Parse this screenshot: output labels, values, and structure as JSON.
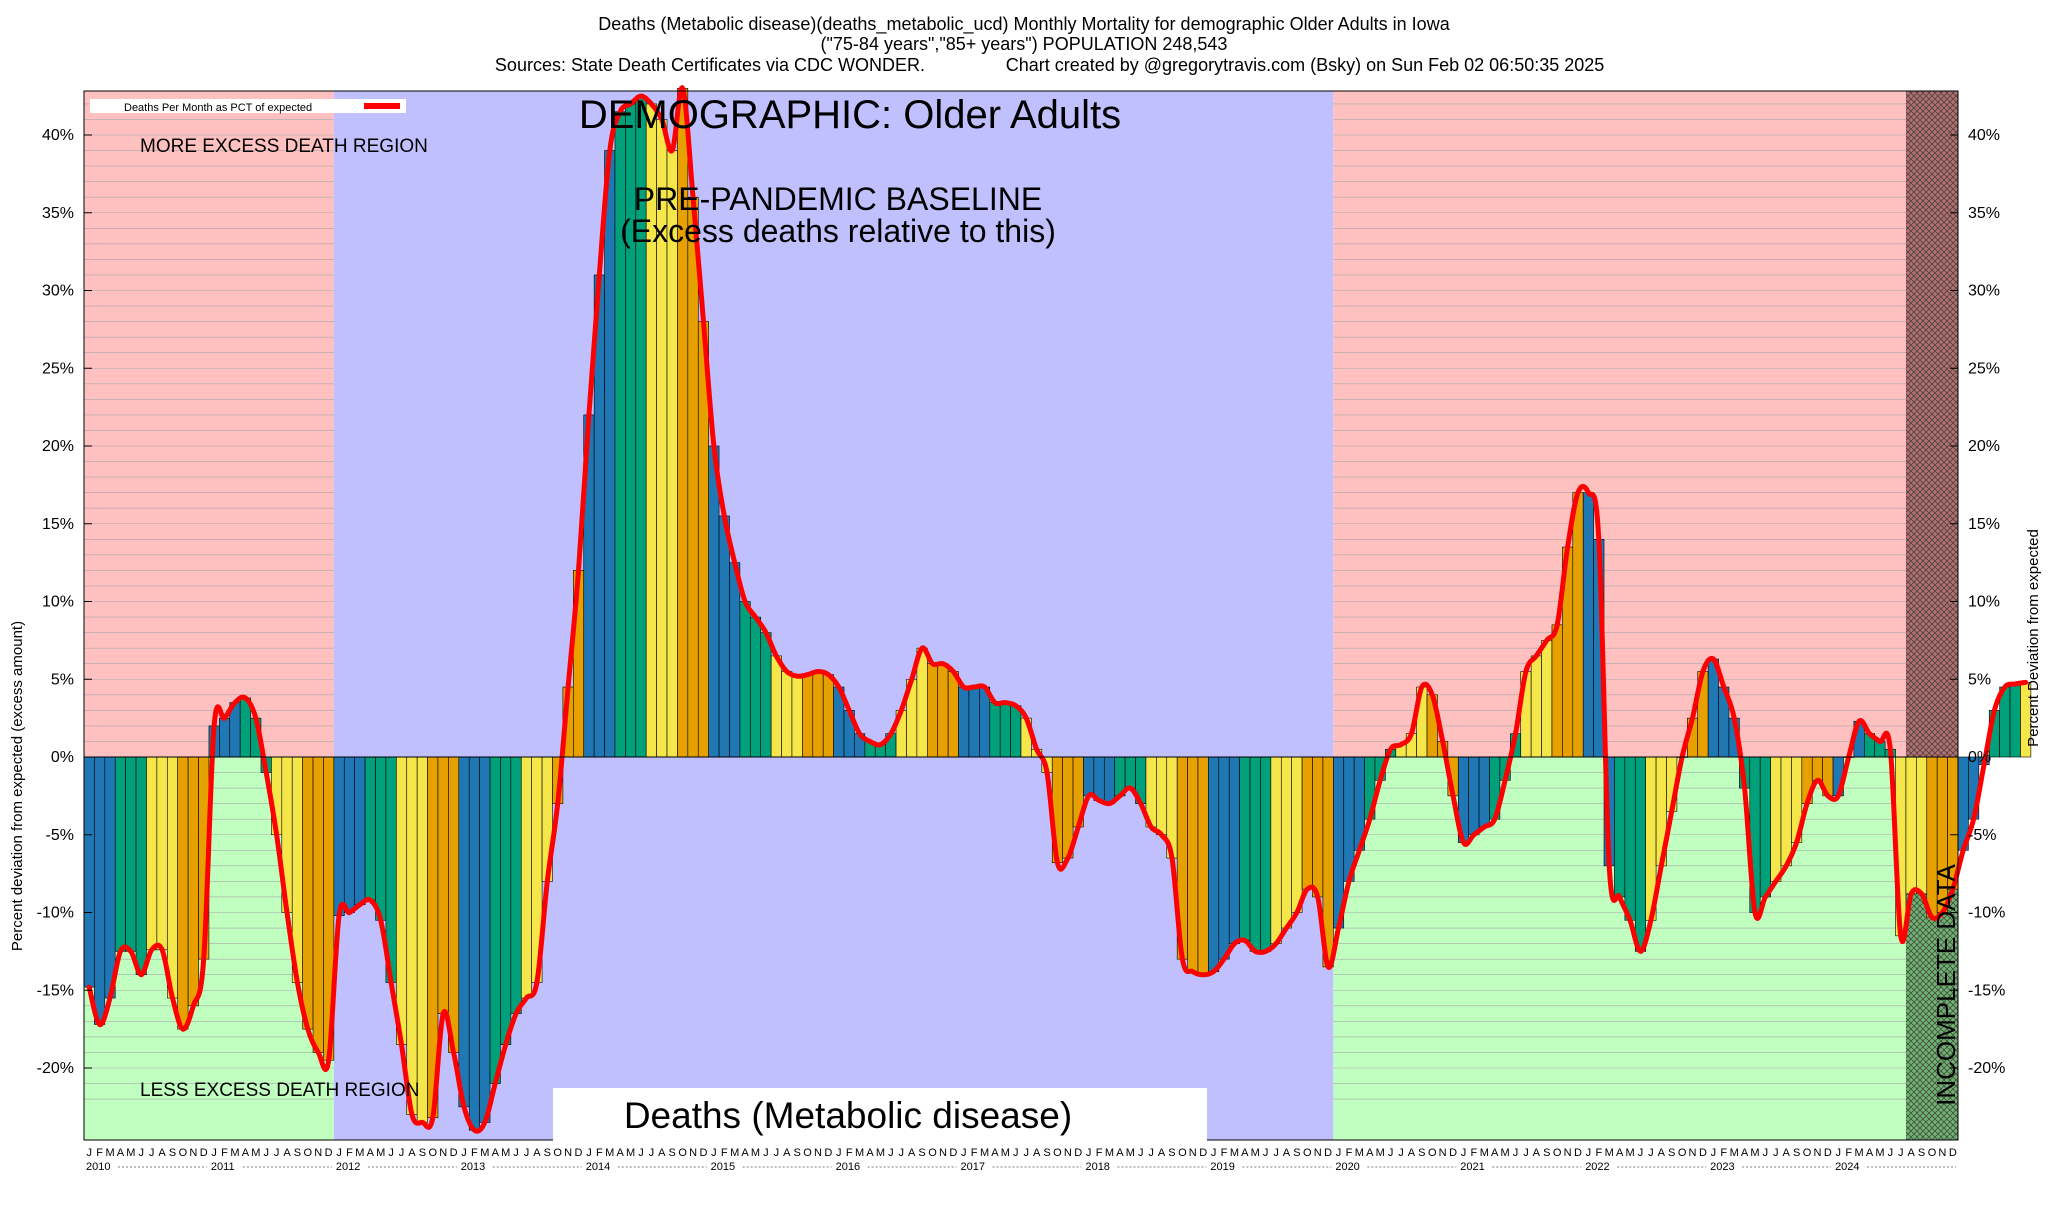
{
  "titles": {
    "line1": "Deaths (Metabolic disease)(deaths_metabolic_ucd) Monthly Mortality for demographic Older Adults in Iowa",
    "line2": "(\"75-84 years\",\"85+ years\") POPULATION 248,543",
    "line3a": "Sources: State Death Certificates via CDC WONDER.",
    "line3b": "Chart created by @gregorytravis.com (Bsky) on Sun Feb 02 06:50:35 2025"
  },
  "labels": {
    "legend": "Deaths Per Month as PCT of expected",
    "demographic": "DEMOGRAPHIC: Older Adults",
    "baseline1": "PRE-PANDEMIC BASELINE",
    "baseline2": "(Excess deaths relative to this)",
    "more_excess": "MORE EXCESS DEATH REGION",
    "less_excess": "LESS EXCESS DEATH REGION",
    "cause": "Deaths (Metabolic disease)",
    "incomplete": "INCOMPLETE DATA",
    "left_axis": "Percent deviation from expected (excess amount)",
    "right_axis": "Percent Deviation from expected"
  },
  "colors": {
    "more_region": "#ffc0c0",
    "less_region": "#c0ffc0",
    "baseline_region": "#c0c0ff",
    "line": "#ff0000",
    "bars": [
      "#1f77b4",
      "#00a07a",
      "#f5e64a",
      "#e6a000"
    ]
  },
  "chart_data": {
    "type": "bar",
    "title": "Deaths (Metabolic disease)(deaths_metabolic_ucd) Monthly Mortality for demographic Older Adults in Iowa",
    "ylabel": "Percent deviation from expected (excess amount)",
    "ylabel_right": "Percent Deviation from expected",
    "ylim": [
      -22.5,
      40
    ],
    "yticks": [
      -20,
      -15,
      -10,
      -5,
      0,
      5,
      10,
      15,
      20,
      25,
      30,
      35,
      40
    ],
    "grid": true,
    "legend_placement": "top-left",
    "month_letters": [
      "J",
      "F",
      "M",
      "A",
      "M",
      "J",
      "J",
      "A",
      "S",
      "O",
      "N",
      "D"
    ],
    "years": [
      "2010",
      "2011",
      "2012",
      "2013",
      "2014",
      "2015",
      "2016",
      "2017",
      "2018",
      "2019",
      "2020",
      "2021",
      "2022",
      "2023",
      "2024"
    ],
    "start": "2010-01",
    "baseline_period": [
      "2012-01",
      "2019-12"
    ],
    "incomplete_from": "2024-08",
    "series": [
      {
        "name": "Deaths Per Month as PCT of expected",
        "values": [
          -14.8,
          -17.2,
          -15.5,
          -12.5,
          -12.5,
          -14.0,
          -12.4,
          -12.4,
          -15.5,
          -17.5,
          -16.0,
          -13.0,
          2.0,
          2.5,
          3.5,
          3.8,
          2.5,
          -1.0,
          -5.0,
          -10.0,
          -14.5,
          -17.5,
          -19.0,
          -19.5,
          -10.2,
          -10.0,
          -9.5,
          -9.2,
          -10.5,
          -14.5,
          -18.5,
          -23.0,
          -23.5,
          -23.2,
          -16.5,
          -19.0,
          -22.5,
          -24.0,
          -23.5,
          -21.0,
          -18.5,
          -16.5,
          -15.5,
          -14.5,
          -8.0,
          -3.0,
          4.5,
          12.0,
          22.0,
          31.0,
          39.0,
          41.5,
          42.0,
          42.5,
          42.0,
          41.0,
          39.0,
          43.0,
          36.0,
          28.0,
          20.0,
          15.5,
          12.5,
          10.0,
          9.0,
          8.0,
          6.5,
          5.5,
          5.2,
          5.3,
          5.5,
          5.3,
          4.5,
          3.0,
          1.5,
          1.0,
          0.8,
          1.5,
          3.0,
          5.0,
          7.0,
          6.0,
          6.0,
          5.5,
          4.5,
          4.5,
          4.5,
          3.5,
          3.5,
          3.3,
          2.5,
          0.5,
          -1.0,
          -6.8,
          -6.5,
          -4.5,
          -2.5,
          -2.8,
          -3.0,
          -2.5,
          -2.0,
          -3.0,
          -4.5,
          -5.0,
          -6.5,
          -13.0,
          -13.8,
          -14.0,
          -13.8,
          -13.0,
          -12.0,
          -11.8,
          -12.5,
          -12.5,
          -12.0,
          -11.0,
          -10.0,
          -8.5,
          -9.0,
          -13.5,
          -11.0,
          -8.0,
          -6.0,
          -4.0,
          -1.5,
          0.5,
          0.8,
          1.5,
          4.5,
          4.0,
          1.0,
          -2.5,
          -5.5,
          -5.0,
          -4.5,
          -4.0,
          -1.5,
          1.5,
          5.5,
          6.5,
          7.5,
          8.5,
          13.5,
          17.0,
          17.0,
          14.0,
          -7.0,
          -9.0,
          -10.5,
          -12.5,
          -10.5,
          -7.0,
          -3.5,
          0.0,
          2.5,
          5.5,
          6.3,
          4.5,
          2.5,
          -2.0,
          -10.0,
          -9.0,
          -8.0,
          -7.0,
          -5.5,
          -3.0,
          -1.5,
          -2.5,
          -2.5,
          0.0,
          2.3,
          1.5,
          1.0,
          0.5,
          -11.5,
          -8.8,
          -8.8,
          -10.3,
          -10.0,
          -8.5,
          -6.0,
          -4.0,
          -0.5,
          3.0,
          4.5,
          4.7,
          4.8
        ]
      }
    ]
  }
}
